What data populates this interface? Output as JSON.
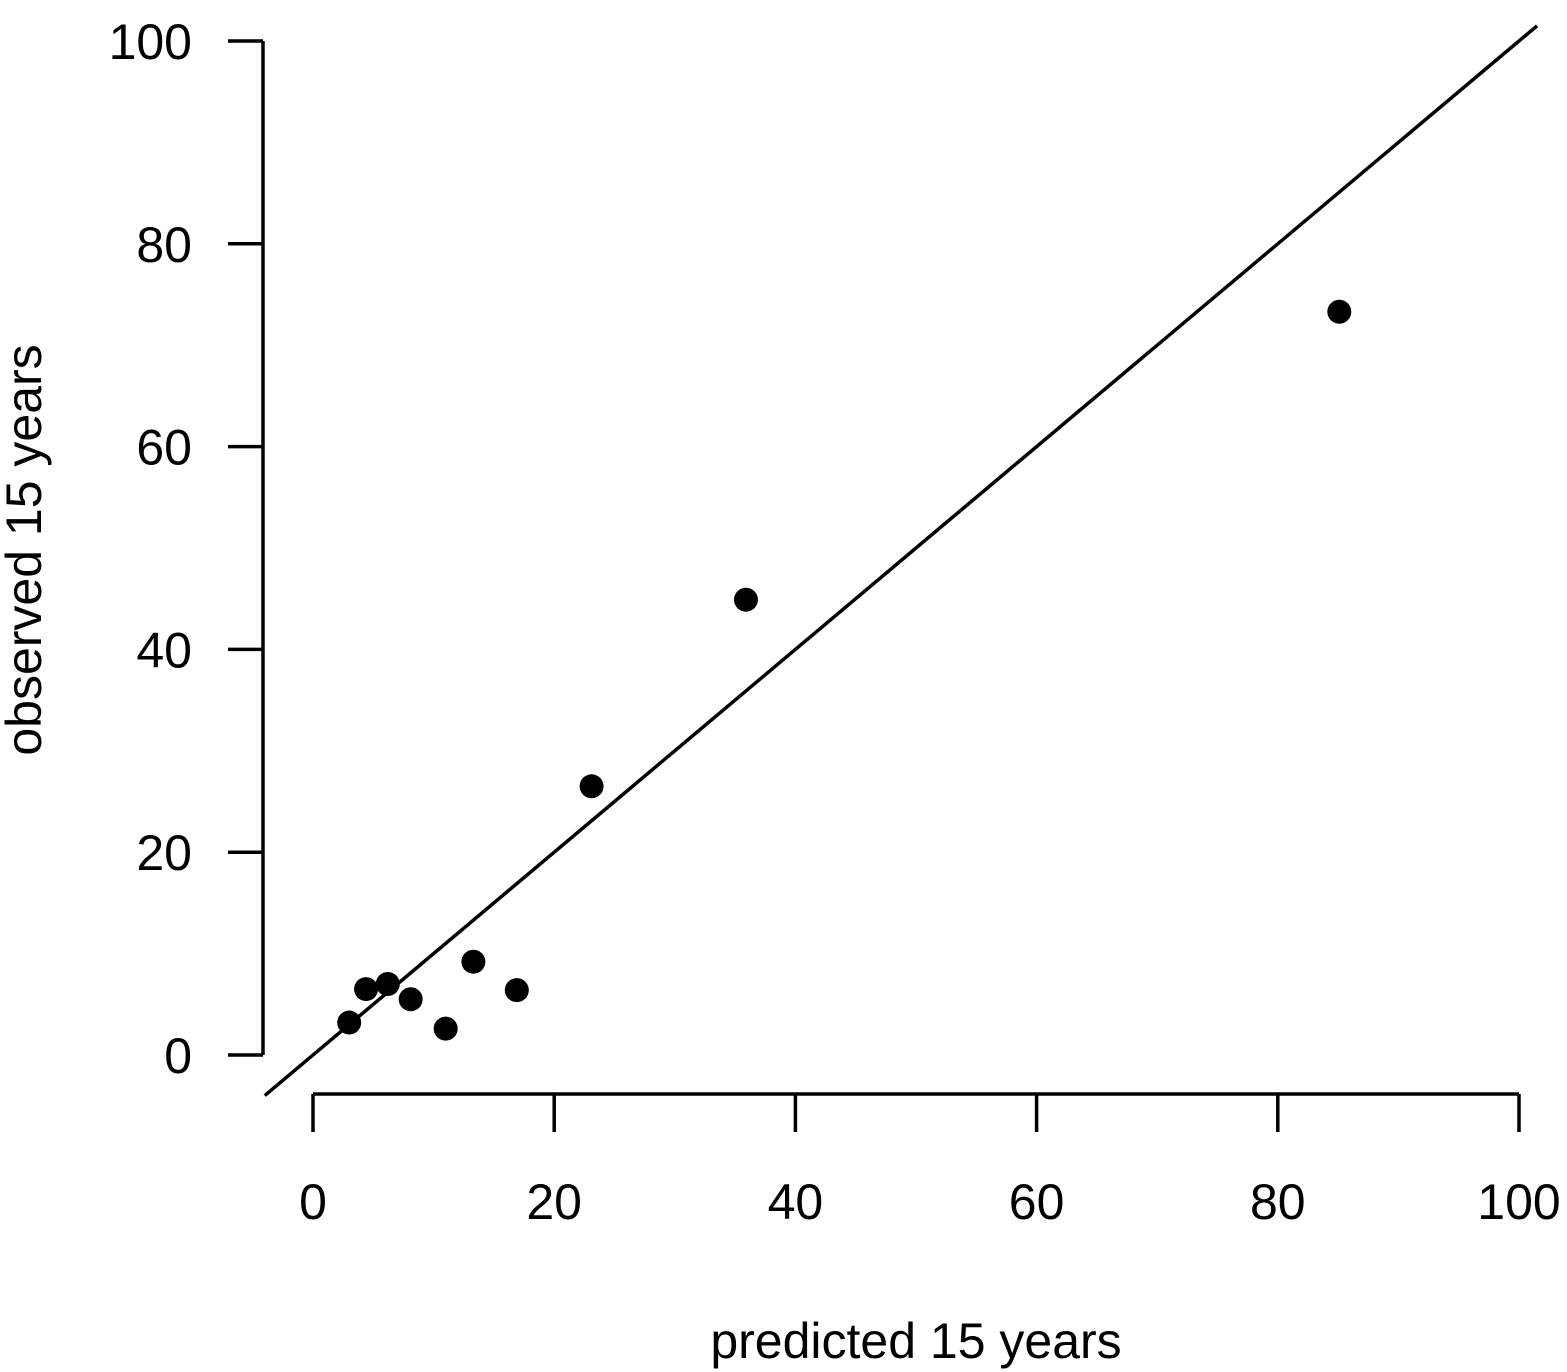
{
  "chart_data": {
    "type": "scatter",
    "title": "",
    "xlabel": "predicted 15 years",
    "ylabel": "observed 15 years",
    "xlim": [
      0,
      100
    ],
    "ylim": [
      0,
      100
    ],
    "x_ticks": [
      0,
      20,
      40,
      60,
      80,
      100
    ],
    "y_ticks": [
      0,
      20,
      40,
      60,
      80,
      100
    ],
    "x_tick_labels": [
      "0",
      "20",
      "40",
      "60",
      "80",
      "100"
    ],
    "y_tick_labels": [
      "0",
      "20",
      "40",
      "60",
      "80",
      "100"
    ],
    "grid": false,
    "legend": "none",
    "reference_line": {
      "type": "identity",
      "slope": 1,
      "intercept": 0,
      "x_range": [
        -4,
        101.5
      ]
    },
    "series": [
      {
        "points": [
          {
            "x": 3.0,
            "y": 3.2
          },
          {
            "x": 4.4,
            "y": 6.5
          },
          {
            "x": 6.2,
            "y": 7.0
          },
          {
            "x": 8.1,
            "y": 5.5
          },
          {
            "x": 11.0,
            "y": 2.6
          },
          {
            "x": 13.3,
            "y": 9.2
          },
          {
            "x": 16.9,
            "y": 6.4
          },
          {
            "x": 23.1,
            "y": 26.5
          },
          {
            "x": 35.9,
            "y": 44.9
          },
          {
            "x": 85.1,
            "y": 73.3
          }
        ]
      }
    ],
    "colors": {
      "points": "#000000",
      "axes": "#000000",
      "line": "#000000"
    }
  }
}
